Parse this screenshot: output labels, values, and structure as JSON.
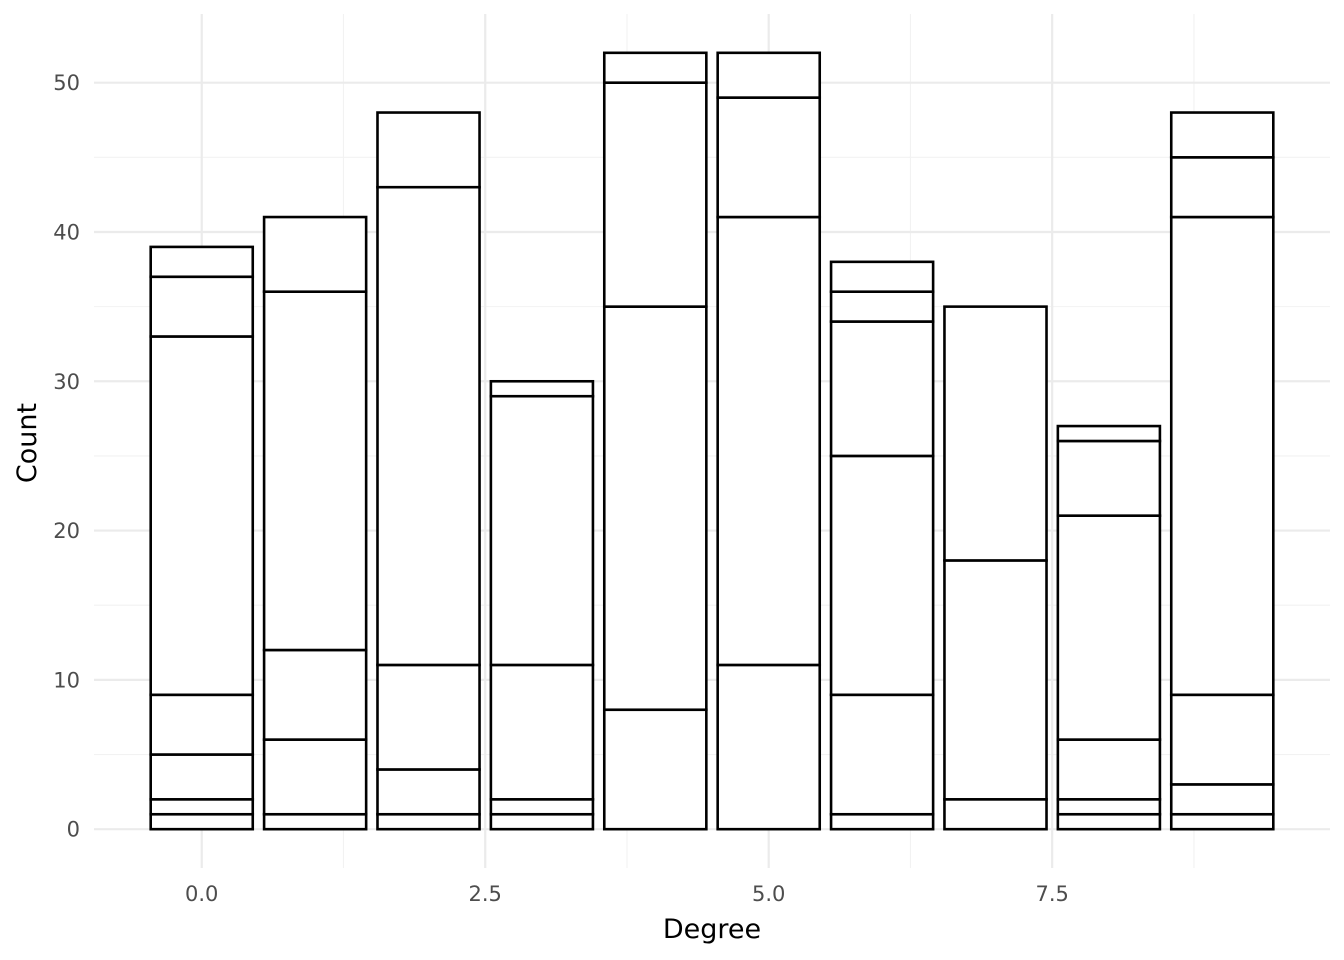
{
  "chart_data": {
    "type": "bar",
    "stacked": true,
    "xlabel": "Degree",
    "ylabel": "Count",
    "xlim": [
      -0.95,
      9.95
    ],
    "ylim": [
      -2.6,
      54.6
    ],
    "x_ticks": [
      0,
      2.5,
      5,
      7.5
    ],
    "x_tick_labels": [
      "0.0",
      "2.5",
      "5.0",
      "7.5"
    ],
    "y_ticks": [
      0,
      10,
      20,
      30,
      40,
      50
    ],
    "y_tick_labels": [
      "0",
      "10",
      "20",
      "30",
      "40",
      "50"
    ],
    "grid": true,
    "legend": "none",
    "bar_width": 0.9,
    "bars": [
      {
        "x": 0,
        "segments": [
          1,
          1,
          3,
          4,
          24,
          4,
          2
        ]
      },
      {
        "x": 1,
        "segments": [
          1,
          5,
          6,
          24,
          5
        ]
      },
      {
        "x": 2,
        "segments": [
          1,
          3,
          7,
          32,
          5
        ]
      },
      {
        "x": 3,
        "segments": [
          1,
          1,
          9,
          18,
          1
        ]
      },
      {
        "x": 4,
        "segments": [
          8,
          27,
          15,
          2
        ]
      },
      {
        "x": 5,
        "segments": [
          11,
          30,
          8,
          3
        ]
      },
      {
        "x": 6,
        "segments": [
          1,
          8,
          16,
          9,
          2,
          2
        ]
      },
      {
        "x": 7,
        "segments": [
          2,
          16,
          17
        ]
      },
      {
        "x": 8,
        "segments": [
          1,
          1,
          4,
          15,
          5,
          1
        ]
      },
      {
        "x": 9,
        "segments": [
          1,
          2,
          6,
          32,
          4,
          3
        ]
      }
    ]
  }
}
